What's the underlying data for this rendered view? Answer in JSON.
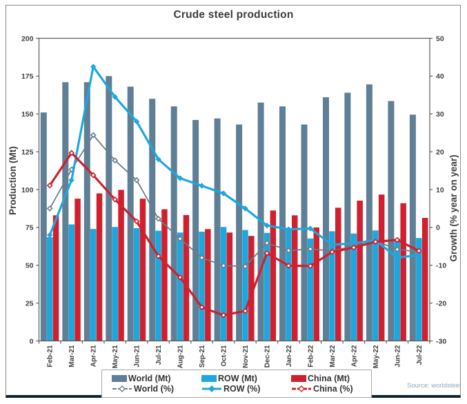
{
  "source_label": "Source: worldsteel",
  "colors": {
    "frame_border": "#8a8a8a",
    "bottom_bar": "#0f2430",
    "title": "#3c3c3c",
    "axis": "#58595b",
    "tick_text": "#404040",
    "source_text": "#8fa7ba",
    "legend_border": "#a8a8a8"
  },
  "chart_data": {
    "type": "combo-bar-line",
    "title": "Crude steel production",
    "ylabel_left": "Production (Mt)",
    "ylabel_right": "Growth (% year on year)",
    "ylim_left": [
      0,
      200
    ],
    "yticks_left": [
      0,
      25,
      50,
      75,
      100,
      125,
      150,
      175,
      200
    ],
    "ylim_right": [
      -30,
      50
    ],
    "yticks_right": [
      -30,
      -20,
      -10,
      0,
      10,
      20,
      30,
      40,
      50
    ],
    "grid": false,
    "legend_position": "bottom",
    "categories": [
      "Feb-21",
      "Mar-21",
      "Apr-21",
      "May-21",
      "Jun-21",
      "Jul-21",
      "Aug-21",
      "Sep-21",
      "Oct-21",
      "Nov-21",
      "Dec-21",
      "Jan-22",
      "Feb-22",
      "Mar-22",
      "Apr-22",
      "May-22",
      "Jun-22",
      "Jul-22"
    ],
    "series": [
      {
        "name": "World (Mt)",
        "type": "bar",
        "axis": "left",
        "color": "#5e7f96",
        "values": [
          151,
          171,
          171,
          175,
          168,
          160,
          155,
          146,
          147,
          143,
          157.5,
          155,
          143,
          161,
          164,
          169.5,
          158.5,
          149.5
        ]
      },
      {
        "name": "ROW (Mt)",
        "type": "bar",
        "axis": "left",
        "color": "#1ea7dd",
        "values": [
          68.5,
          77,
          74,
          75.3,
          74.5,
          72.8,
          71.6,
          72.2,
          75.3,
          73.3,
          71.4,
          73.8,
          67.7,
          72.5,
          71,
          73,
          67.5,
          68
        ]
      },
      {
        "name": "China (Mt)",
        "type": "bar",
        "axis": "left",
        "color": "#d01f2e",
        "values": [
          83,
          94,
          97.5,
          99.8,
          94,
          87,
          83.2,
          73.9,
          71.6,
          69.4,
          86.2,
          83,
          75,
          88,
          92.7,
          96.7,
          91,
          81.3
        ]
      },
      {
        "name": "World (%)",
        "type": "line",
        "axis": "right",
        "color": "#6d7d89",
        "marker": "open-diamond",
        "line_width": 1.8,
        "values": [
          5,
          15.3,
          24.4,
          17.7,
          12.5,
          2.3,
          -3,
          -8,
          -10.1,
          -10.3,
          -4.1,
          -6.1,
          -5.7,
          -6.2,
          -5,
          -3.6,
          -5.8,
          -6.5
        ]
      },
      {
        "name": "ROW (%)",
        "type": "line",
        "axis": "right",
        "color": "#1ea7dd",
        "marker": "solid-diamond",
        "line_width": 3.2,
        "values": [
          -2,
          12.5,
          42.5,
          34.5,
          28,
          18,
          13,
          11,
          9,
          5,
          0.5,
          -0.5,
          -0.3,
          -4.6,
          -4.2,
          -3.4,
          -8,
          -7.3
        ]
      },
      {
        "name": "China (%)",
        "type": "line",
        "axis": "right",
        "color": "#d01f2e",
        "marker": "open-diamond",
        "line_width": 3.2,
        "values": [
          11.1,
          19.7,
          13.8,
          7.4,
          1.6,
          -7.6,
          -13.2,
          -21.1,
          -23.2,
          -22.1,
          -6.8,
          -10.1,
          -10.2,
          -6.5,
          -5.3,
          -3.8,
          -3.3,
          -6.2
        ]
      }
    ]
  }
}
